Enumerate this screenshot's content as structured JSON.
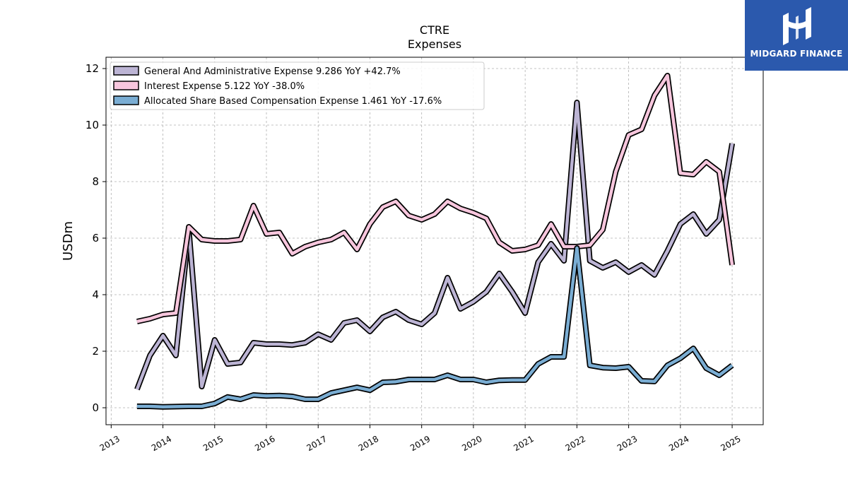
{
  "brand": {
    "name": "MIDGARD FINANCE",
    "bg_color": "#2b59ad"
  },
  "chart_data": {
    "type": "line",
    "title": "CTRE",
    "subtitle": "Expenses",
    "xlabel": "",
    "ylabel": "USDm",
    "xlim": [
      2012.9,
      2025.6
    ],
    "ylim": [
      -0.6,
      12.4
    ],
    "x_ticks": [
      "2013",
      "2014",
      "2015",
      "2016",
      "2017",
      "2018",
      "2019",
      "2020",
      "2021",
      "2022",
      "2023",
      "2024",
      "2025"
    ],
    "y_ticks": [
      "0",
      "2",
      "4",
      "6",
      "8",
      "10",
      "12"
    ],
    "grid": true,
    "legend_position": "top-left",
    "series": [
      {
        "name": "General And Administrative Expense  9.286 YoY +42.7%",
        "color": "#bcb4d4",
        "points": [
          [
            2013.5,
            0.65
          ],
          [
            2013.75,
            1.85
          ],
          [
            2014.0,
            2.55
          ],
          [
            2014.25,
            1.85
          ],
          [
            2014.5,
            6.3
          ],
          [
            2014.75,
            0.75
          ],
          [
            2015.0,
            2.4
          ],
          [
            2015.25,
            1.55
          ],
          [
            2015.5,
            1.6
          ],
          [
            2015.75,
            2.3
          ],
          [
            2016.0,
            2.25
          ],
          [
            2016.25,
            2.25
          ],
          [
            2016.5,
            2.22
          ],
          [
            2016.75,
            2.3
          ],
          [
            2017.0,
            2.6
          ],
          [
            2017.25,
            2.4
          ],
          [
            2017.5,
            3.0
          ],
          [
            2017.75,
            3.1
          ],
          [
            2018.0,
            2.7
          ],
          [
            2018.25,
            3.2
          ],
          [
            2018.5,
            3.4
          ],
          [
            2018.75,
            3.1
          ],
          [
            2019.0,
            2.95
          ],
          [
            2019.25,
            3.35
          ],
          [
            2019.5,
            4.6
          ],
          [
            2019.75,
            3.5
          ],
          [
            2020.0,
            3.75
          ],
          [
            2020.25,
            4.1
          ],
          [
            2020.5,
            4.75
          ],
          [
            2020.75,
            4.1
          ],
          [
            2021.0,
            3.35
          ],
          [
            2021.25,
            5.15
          ],
          [
            2021.5,
            5.8
          ],
          [
            2021.75,
            5.2
          ],
          [
            2022.0,
            10.8
          ],
          [
            2022.25,
            5.2
          ],
          [
            2022.5,
            4.95
          ],
          [
            2022.75,
            5.15
          ],
          [
            2023.0,
            4.8
          ],
          [
            2023.25,
            5.05
          ],
          [
            2023.5,
            4.7
          ],
          [
            2023.75,
            5.55
          ],
          [
            2024.0,
            6.5
          ],
          [
            2024.25,
            6.85
          ],
          [
            2024.5,
            6.15
          ],
          [
            2024.75,
            6.65
          ],
          [
            2025.0,
            9.35
          ]
        ]
      },
      {
        "name": "Interest Expense  5.122 YoY -38.0%",
        "color": "#f7c6dd",
        "points": [
          [
            2013.5,
            3.05
          ],
          [
            2013.75,
            3.15
          ],
          [
            2014.0,
            3.3
          ],
          [
            2014.25,
            3.35
          ],
          [
            2014.5,
            6.4
          ],
          [
            2014.75,
            5.95
          ],
          [
            2015.0,
            5.9
          ],
          [
            2015.25,
            5.9
          ],
          [
            2015.5,
            5.95
          ],
          [
            2015.75,
            7.15
          ],
          [
            2016.0,
            6.15
          ],
          [
            2016.25,
            6.2
          ],
          [
            2016.5,
            5.45
          ],
          [
            2016.75,
            5.7
          ],
          [
            2017.0,
            5.85
          ],
          [
            2017.25,
            5.95
          ],
          [
            2017.5,
            6.2
          ],
          [
            2017.75,
            5.6
          ],
          [
            2018.0,
            6.5
          ],
          [
            2018.25,
            7.1
          ],
          [
            2018.5,
            7.3
          ],
          [
            2018.75,
            6.8
          ],
          [
            2019.0,
            6.65
          ],
          [
            2019.25,
            6.85
          ],
          [
            2019.5,
            7.3
          ],
          [
            2019.75,
            7.05
          ],
          [
            2020.0,
            6.9
          ],
          [
            2020.25,
            6.7
          ],
          [
            2020.5,
            5.85
          ],
          [
            2020.75,
            5.55
          ],
          [
            2021.0,
            5.6
          ],
          [
            2021.25,
            5.75
          ],
          [
            2021.5,
            6.5
          ],
          [
            2021.75,
            5.7
          ],
          [
            2022.0,
            5.7
          ],
          [
            2022.25,
            5.75
          ],
          [
            2022.5,
            6.3
          ],
          [
            2022.75,
            8.35
          ],
          [
            2023.0,
            9.65
          ],
          [
            2023.25,
            9.85
          ],
          [
            2023.5,
            11.05
          ],
          [
            2023.75,
            11.75
          ],
          [
            2024.0,
            8.3
          ],
          [
            2024.25,
            8.25
          ],
          [
            2024.5,
            8.7
          ],
          [
            2024.75,
            8.35
          ],
          [
            2025.0,
            5.05
          ]
        ]
      },
      {
        "name": "Allocated Share Based Compensation Expense  1.461 YoY -17.6%",
        "color": "#7aadd3",
        "points": [
          [
            2013.5,
            0.05
          ],
          [
            2013.75,
            0.05
          ],
          [
            2014.0,
            0.03
          ],
          [
            2014.25,
            0.04
          ],
          [
            2014.5,
            0.05
          ],
          [
            2014.75,
            0.05
          ],
          [
            2015.0,
            0.15
          ],
          [
            2015.25,
            0.38
          ],
          [
            2015.5,
            0.3
          ],
          [
            2015.75,
            0.45
          ],
          [
            2016.0,
            0.42
          ],
          [
            2016.25,
            0.43
          ],
          [
            2016.5,
            0.4
          ],
          [
            2016.75,
            0.3
          ],
          [
            2017.0,
            0.3
          ],
          [
            2017.25,
            0.52
          ],
          [
            2017.5,
            0.62
          ],
          [
            2017.75,
            0.72
          ],
          [
            2018.0,
            0.62
          ],
          [
            2018.25,
            0.9
          ],
          [
            2018.5,
            0.92
          ],
          [
            2018.75,
            1.0
          ],
          [
            2019.0,
            1.0
          ],
          [
            2019.25,
            1.0
          ],
          [
            2019.5,
            1.15
          ],
          [
            2019.75,
            1.0
          ],
          [
            2020.0,
            1.0
          ],
          [
            2020.25,
            0.9
          ],
          [
            2020.5,
            0.97
          ],
          [
            2020.75,
            0.98
          ],
          [
            2021.0,
            0.98
          ],
          [
            2021.25,
            1.55
          ],
          [
            2021.5,
            1.8
          ],
          [
            2021.75,
            1.8
          ],
          [
            2022.0,
            5.65
          ],
          [
            2022.25,
            1.5
          ],
          [
            2022.5,
            1.42
          ],
          [
            2022.75,
            1.4
          ],
          [
            2023.0,
            1.45
          ],
          [
            2023.25,
            0.95
          ],
          [
            2023.5,
            0.93
          ],
          [
            2023.75,
            1.5
          ],
          [
            2024.0,
            1.75
          ],
          [
            2024.25,
            2.1
          ],
          [
            2024.5,
            1.4
          ],
          [
            2024.75,
            1.15
          ],
          [
            2025.0,
            1.5
          ]
        ]
      }
    ]
  }
}
